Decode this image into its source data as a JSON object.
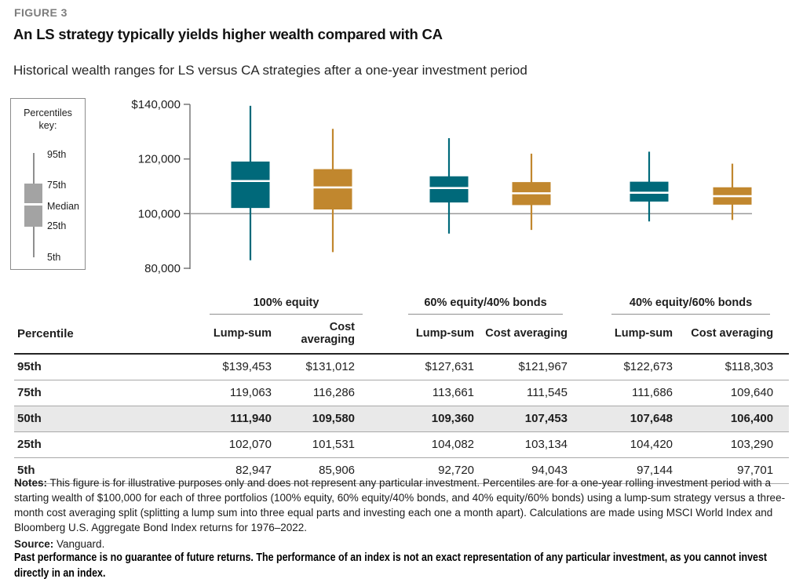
{
  "header": {
    "figure_label": "FIGURE 3",
    "title": "An LS strategy typically yields higher wealth compared with CA",
    "subtitle": "Historical wealth ranges for LS versus CA strategies after a one-year investment period"
  },
  "legend": {
    "title_line1": "Percentiles",
    "title_line2": "key:",
    "labels": [
      "95th",
      "75th",
      "Median",
      "25th",
      "5th"
    ]
  },
  "chart_data": {
    "type": "boxplot",
    "title": "An LS strategy typically yields higher wealth compared with CA",
    "subtitle": "Historical wealth ranges for LS versus CA strategies after a one-year investment period",
    "ylim": [
      80000,
      140000
    ],
    "y_ticks": [
      {
        "label": "$140,000",
        "value": 140000
      },
      {
        "label": "120,000",
        "value": 120000
      },
      {
        "label": "100,000",
        "value": 100000
      },
      {
        "label": "80,000",
        "value": 80000
      }
    ],
    "reference_line": 100000,
    "grid": false,
    "legend_position": "left",
    "colors": {
      "lump_sum": "#00697a",
      "cost_averaging": "#c1872e",
      "legend_gray": "#a3a3a3"
    },
    "groups": [
      "100% equity",
      "60% equity/40% bonds",
      "40% equity/60% bonds"
    ],
    "boxes": [
      {
        "group": "100% equity",
        "strategy": "Lump-sum",
        "color": "lump_sum",
        "p5": 82947,
        "p25": 102070,
        "p50": 111940,
        "p75": 119063,
        "p95": 139453
      },
      {
        "group": "100% equity",
        "strategy": "Cost averaging",
        "color": "cost_averaging",
        "p5": 85906,
        "p25": 101531,
        "p50": 109580,
        "p75": 116286,
        "p95": 131012
      },
      {
        "group": "60% equity/40% bonds",
        "strategy": "Lump-sum",
        "color": "lump_sum",
        "p5": 92720,
        "p25": 104082,
        "p50": 109360,
        "p75": 113661,
        "p95": 127631
      },
      {
        "group": "60% equity/40% bonds",
        "strategy": "Cost averaging",
        "color": "cost_averaging",
        "p5": 94043,
        "p25": 103134,
        "p50": 107453,
        "p75": 111545,
        "p95": 121967
      },
      {
        "group": "40% equity/60% bonds",
        "strategy": "Lump-sum",
        "color": "lump_sum",
        "p5": 97144,
        "p25": 104420,
        "p50": 107648,
        "p75": 111686,
        "p95": 122673
      },
      {
        "group": "40% equity/60% bonds",
        "strategy": "Cost averaging",
        "color": "cost_averaging",
        "p5": 97701,
        "p25": 103290,
        "p50": 106400,
        "p75": 109640,
        "p95": 118303
      }
    ]
  },
  "table": {
    "row_header": "Percentile",
    "groups": [
      "100% equity",
      "60% equity/40% bonds",
      "40% equity/60% bonds"
    ],
    "subheaders": [
      "Lump-sum",
      "Cost averaging"
    ],
    "rows": [
      {
        "percentile": "95th",
        "highlight": false,
        "values": [
          "$139,453",
          "$131,012",
          "$127,631",
          "$121,967",
          "$122,673",
          "$118,303"
        ]
      },
      {
        "percentile": "75th",
        "highlight": false,
        "values": [
          "119,063",
          "116,286",
          "113,661",
          "111,545",
          "111,686",
          "109,640"
        ]
      },
      {
        "percentile": "50th",
        "highlight": true,
        "values": [
          "111,940",
          "109,580",
          "109,360",
          "107,453",
          "107,648",
          "106,400"
        ]
      },
      {
        "percentile": "25th",
        "highlight": false,
        "values": [
          "102,070",
          "101,531",
          "104,082",
          "103,134",
          "104,420",
          "103,290"
        ]
      },
      {
        "percentile": "5th",
        "highlight": false,
        "values": [
          "82,947",
          "85,906",
          "92,720",
          "94,043",
          "97,144",
          "97,701"
        ]
      }
    ]
  },
  "notes": {
    "notes_label": "Notes:",
    "notes_text": " This figure is for illustrative purposes only and does not represent any particular investment. Percentiles are for a one-year rolling investment period with a starting wealth of $100,000 for each of three portfolios (100% equity, 60% equity/40% bonds, and 40% equity/60% bonds) using a lump-sum strategy versus a three-month cost averaging split (splitting a lump sum into three equal parts and investing each one a month apart). Calculations are made using MSCI World Index and Bloomberg U.S. Aggregate Bond Index returns for 1976–2022.",
    "source_label": "Source:",
    "source_text": " Vanguard.",
    "disclaimer": "Past performance is no guarantee of future returns. The performance of an index is not an exact representation of any particular investment, as you cannot invest directly in an index."
  }
}
